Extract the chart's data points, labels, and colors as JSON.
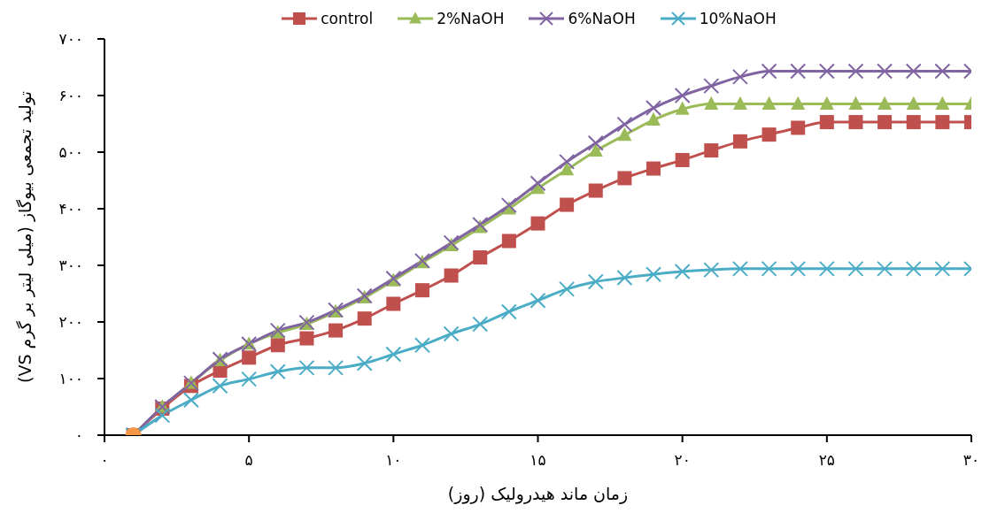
{
  "chart_data": {
    "type": "line",
    "xlabel": "زمان ماند هیدرولیک (روز)",
    "ylabel": "تولید تجمعی بیوگاز (میلی لیتر بر گرم VS)",
    "x": [
      1,
      2,
      3,
      4,
      5,
      6,
      7,
      8,
      9,
      10,
      11,
      12,
      13,
      14,
      15,
      16,
      17,
      18,
      19,
      20,
      21,
      22,
      23,
      24,
      25,
      26,
      27,
      28,
      29,
      30
    ],
    "xlim": [
      0,
      30
    ],
    "xticks": [
      {
        "value": 0,
        "label": "۰"
      },
      {
        "value": 5,
        "label": "۵"
      },
      {
        "value": 10,
        "label": "۱۰"
      },
      {
        "value": 15,
        "label": "۱۵"
      },
      {
        "value": 20,
        "label": "۲۰"
      },
      {
        "value": 25,
        "label": "۲۵"
      },
      {
        "value": 30,
        "label": "۳۰"
      }
    ],
    "ylim": [
      0,
      700
    ],
    "yticks": [
      {
        "value": 0,
        "label": "۰"
      },
      {
        "value": 100,
        "label": "۱۰۰"
      },
      {
        "value": 200,
        "label": "۲۰۰"
      },
      {
        "value": 300,
        "label": "۳۰۰"
      },
      {
        "value": 400,
        "label": "۴۰۰"
      },
      {
        "value": 500,
        "label": "۵۰۰"
      },
      {
        "value": 600,
        "label": "۶۰۰"
      },
      {
        "value": 700,
        "label": "۷۰۰"
      }
    ],
    "legend": "top",
    "series": [
      {
        "name": "control",
        "color": "#c0504d",
        "marker": "square",
        "values": [
          0,
          47,
          87,
          114,
          137,
          159,
          171,
          185,
          206,
          232,
          256,
          282,
          314,
          343,
          374,
          407,
          432,
          454,
          471,
          486,
          503,
          519,
          531,
          543,
          553,
          553,
          553,
          553,
          553,
          553
        ]
      },
      {
        "name": "2%NaOH",
        "color": "#9bbb59",
        "marker": "triangle",
        "values": [
          0,
          50,
          92,
          132,
          161,
          181,
          196,
          218,
          243,
          273,
          305,
          335,
          367,
          400,
          436,
          469,
          502,
          530,
          557,
          576,
          585,
          585,
          585,
          585,
          585,
          585,
          585,
          585,
          585,
          585
        ]
      },
      {
        "name": "6%NaOH",
        "color": "#8064a2",
        "marker": "cross",
        "values": [
          0,
          50,
          92,
          134,
          161,
          185,
          199,
          221,
          246,
          277,
          308,
          340,
          372,
          406,
          445,
          483,
          516,
          549,
          578,
          600,
          617,
          633,
          643,
          643,
          643,
          643,
          643,
          643,
          643,
          643
        ]
      },
      {
        "name": "10%NaOH",
        "color": "#4bacc6",
        "marker": "cross",
        "values": [
          0,
          35,
          62,
          87,
          99,
          112,
          119,
          119,
          127,
          143,
          159,
          179,
          196,
          218,
          238,
          258,
          271,
          278,
          284,
          289,
          292,
          294,
          294,
          294,
          294,
          294,
          294,
          294,
          294,
          294
        ]
      },
      {
        "type": "scatter",
        "color": "#f79646",
        "marker": "circle",
        "x": [
          1
        ],
        "values": [
          0
        ]
      }
    ]
  }
}
